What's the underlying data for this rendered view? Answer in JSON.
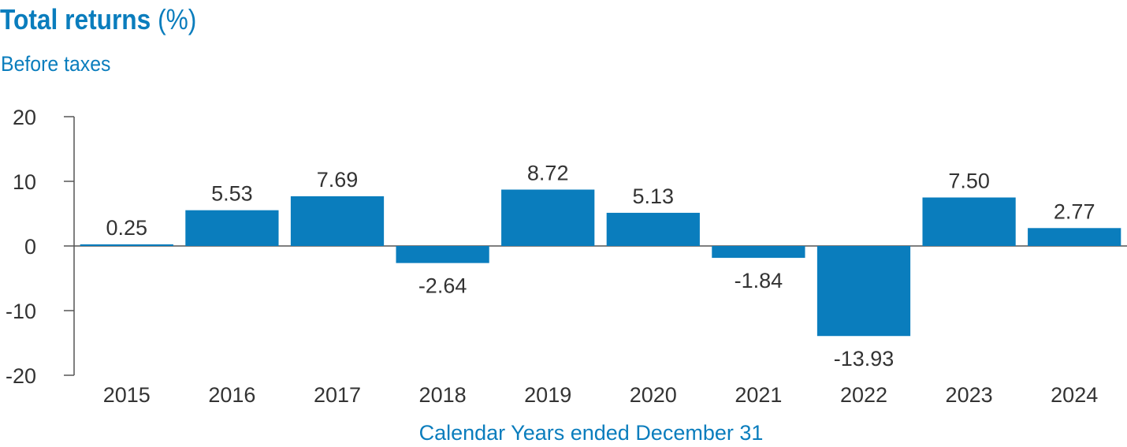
{
  "chart_data": {
    "type": "bar",
    "title": "Total returns",
    "title_unit": "(%)",
    "subtitle": "Before taxes",
    "xlabel": "Calendar Years ended December 31",
    "ylabel": "",
    "ylim": [
      -20,
      20
    ],
    "yticks": [
      20,
      10,
      0,
      -10,
      -20
    ],
    "categories": [
      "2015",
      "2016",
      "2017",
      "2018",
      "2019",
      "2020",
      "2021",
      "2022",
      "2023",
      "2024"
    ],
    "values": [
      0.25,
      5.53,
      7.69,
      -2.64,
      8.72,
      5.13,
      -1.84,
      -13.93,
      7.5,
      2.77
    ],
    "value_labels": [
      "0.25",
      "5.53",
      "7.69",
      "-2.64",
      "8.72",
      "5.13",
      "-1.84",
      "-13.93",
      "7.50",
      "2.77"
    ],
    "grid": false,
    "legend": "none"
  },
  "colors": {
    "bar": "#0a7dbd",
    "title": "#0a7dbd",
    "axis": "#555555",
    "text": "#333333"
  }
}
